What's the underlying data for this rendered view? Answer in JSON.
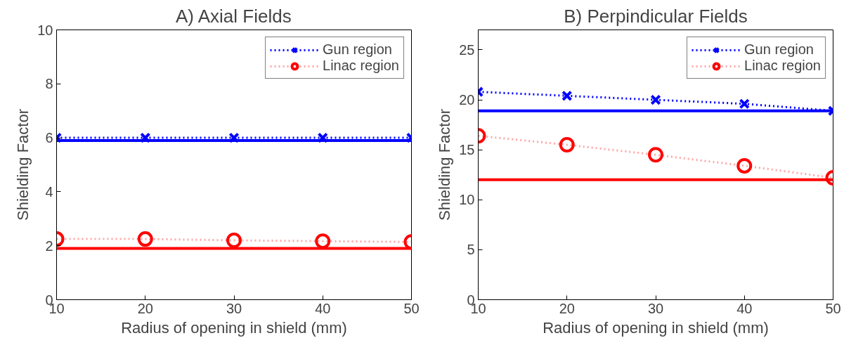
{
  "chart_data": [
    {
      "type": "line",
      "title": "A) Axial Fields",
      "xlabel": "Radius of opening in shield (mm)",
      "ylabel": "Shielding Factor",
      "x": [
        10,
        20,
        30,
        40,
        50
      ],
      "xlim": [
        10,
        50
      ],
      "xticks": [
        10,
        20,
        30,
        40,
        50
      ],
      "ylim": [
        0,
        10
      ],
      "yticks": [
        0,
        2,
        4,
        6,
        8,
        10
      ],
      "grid": false,
      "legend": "top right",
      "series": [
        {
          "name": "Gun region",
          "color": "#0000ff",
          "values": [
            6.0,
            6.0,
            6.0,
            6.0,
            6.0
          ],
          "marker": "cross",
          "line_style": "dotted"
        },
        {
          "name": "Linac region",
          "color": "#ff0000",
          "values": [
            2.25,
            2.25,
            2.2,
            2.17,
            2.14
          ],
          "marker": "circle",
          "line_style": "dotted"
        },
        {
          "color": "#0000ff",
          "values": [
            5.9,
            5.9,
            5.9,
            5.9,
            5.9
          ],
          "marker": "none",
          "line_style": "solid"
        },
        {
          "color": "#ff0000",
          "values": [
            1.9,
            1.9,
            1.9,
            1.9,
            1.9
          ],
          "marker": "none",
          "line_style": "solid"
        }
      ]
    },
    {
      "type": "line",
      "title": "B) Perpindicular Fields",
      "xlabel": "Radius of opening in shield (mm)",
      "ylabel": "Shielding Factor",
      "x": [
        10,
        20,
        30,
        40,
        50
      ],
      "xlim": [
        10,
        50
      ],
      "xticks": [
        10,
        20,
        30,
        40,
        50
      ],
      "ylim": [
        0,
        27
      ],
      "yticks": [
        0,
        5,
        10,
        15,
        20,
        25
      ],
      "grid": false,
      "legend": "top right",
      "series": [
        {
          "name": "Gun region",
          "color": "#0000ff",
          "values": [
            20.8,
            20.4,
            20.0,
            19.6,
            18.9
          ],
          "marker": "cross",
          "line_style": "dotted"
        },
        {
          "name": "Linac region",
          "color": "#ff0000",
          "values": [
            16.4,
            15.5,
            14.5,
            13.4,
            12.2
          ],
          "marker": "circle",
          "line_style": "dotted"
        },
        {
          "color": "#0000ff",
          "values": [
            18.9,
            18.9,
            18.9,
            18.9,
            18.9
          ],
          "marker": "none",
          "line_style": "solid"
        },
        {
          "color": "#ff0000",
          "values": [
            12.0,
            12.0,
            12.0,
            12.0,
            12.0
          ],
          "marker": "none",
          "line_style": "solid"
        }
      ]
    }
  ]
}
